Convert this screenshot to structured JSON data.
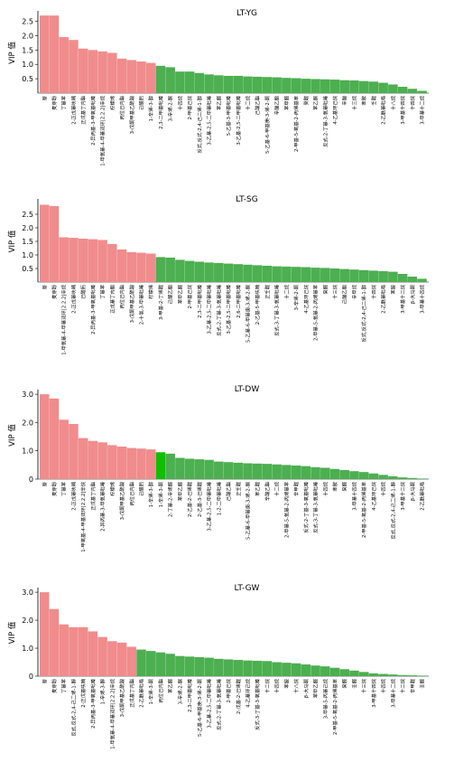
{
  "colors": {
    "vip_high": "#f08c8c",
    "vip_low": "#4caf50",
    "vip_low_highlight": "#0fbf00",
    "axis": "#000000"
  },
  "chart_data": [
    {
      "type": "bar",
      "title": "LT-YG",
      "ylabel": "VIP 值",
      "ylim": [
        0,
        2.8
      ],
      "yticks": [
        "2.5",
        "2.0",
        "1.5",
        "1.0",
        "0.5"
      ],
      "ytick_values": [
        2.5,
        2.0,
        1.5,
        1.0,
        0.5
      ],
      "categories": [
        "萘",
        "麦芽酚",
        "丁基苯",
        "2-正戊基呋喃",
        "正戊基丁内酯",
        "2-异丙基-3-甲氧基吡嗪",
        "1-甲氧基-4-甲基双环[2.2.2]辛烷",
        "柠檬烯",
        "丙位己内酯",
        "3-戊酮甲基乙酰酸",
        "己醛肟",
        "1-辛烯-3-醇",
        "2,3-二甲基吡嗪",
        "3-辛烯-2-酮",
        "十四烷",
        "2-甲基己烷",
        "反式,反式-2,4-己二烯-1-醇",
        "3-乙基-2,5-二甲基吡嗪",
        "苯乙醛",
        "5-乙基-3-甲基吡嗪",
        "3-乙基-2,5-二甲基吡嗪",
        "十二烷",
        "己酸乙酯",
        "5-乙基-6-甲基庚-3-烯-2-酮",
        "辛酸乙酯",
        "苯甲醛",
        "2-甲基-5-氧基-2-丙烯基苯",
        "癸醛",
        "苯乙酮",
        "反式-2-丁基-3-氧基吡嗪",
        "4-乙基环己烷",
        "辛酸",
        "十三烷",
        "苯胺",
        "壬醛",
        "2-乙酰基吡咯",
        "十八烷",
        "3-甲基十四烷",
        "十四烷",
        "3-甲基十二烷"
      ],
      "values": [
        2.7,
        2.7,
        1.95,
        1.85,
        1.55,
        1.5,
        1.45,
        1.4,
        1.2,
        1.15,
        1.1,
        1.05,
        0.95,
        0.9,
        0.75,
        0.75,
        0.7,
        0.65,
        0.62,
        0.6,
        0.6,
        0.58,
        0.57,
        0.56,
        0.55,
        0.53,
        0.52,
        0.5,
        0.49,
        0.48,
        0.47,
        0.45,
        0.44,
        0.42,
        0.4,
        0.36,
        0.3,
        0.22,
        0.15,
        0.08
      ],
      "highlight_index": -1
    },
    {
      "type": "bar",
      "title": "LT-SG",
      "ylabel": "VIP 值",
      "ylim": [
        0,
        3.0
      ],
      "yticks": [
        "2.5",
        "2.0",
        "1.5",
        "1.0",
        "0.5"
      ],
      "ytick_values": [
        2.5,
        2.0,
        1.5,
        1.0,
        0.5
      ],
      "categories": [
        "萘",
        "麦芽酚",
        "1-甲氧基-4-甲基双环[2.2.2]辛烷",
        "2-正戊基呋喃",
        "己醛肟",
        "2-异丙基-3-甲氧基吡嗪",
        "丁基苯",
        "正戊基丁内酯",
        "丙位己内酯",
        "3-戊酮甲基乙酰酸",
        "2-十氢-3-甲基吡嗪",
        "柠檬烯",
        "3-甲基-2-丁烯醛",
        "己醛乙酯",
        "苯甲乙醛",
        "2-甲基己烷",
        "2,3-二甲基吡嗪",
        "3-乙基-2,5-二甲基吡嗪",
        "反式-2-丁基-3-氧基吡嗪",
        "3-乙基-2,5-二甲基吡嗪",
        "2,6-二甲基吡嗪",
        "5-乙基-6-甲基庚-3-烯-2-酮",
        "2-乙基-5-甲基呋喃",
        "正壬醛",
        "反式-3-丁基-3-氧基吡嗪",
        "十二烷",
        "3-辛烯-2-酮",
        "4-乙基环己烷",
        "2-甲基-5-氧基-2-丙烯基苯",
        "癸醛",
        "十三烷",
        "己酸乙酯",
        "辛甲烷",
        "反式,反式-2,4-己二烯-1-醇",
        "十四烷",
        "2-乙酰基吡咯",
        "苯胺",
        "3-甲基十二烷",
        "β-大马酮",
        "3-甲基十四烷"
      ],
      "values": [
        2.85,
        2.8,
        1.65,
        1.63,
        1.6,
        1.58,
        1.55,
        1.4,
        1.2,
        1.1,
        1.08,
        1.05,
        0.92,
        0.9,
        0.82,
        0.78,
        0.75,
        0.72,
        0.7,
        0.68,
        0.66,
        0.64,
        0.62,
        0.6,
        0.58,
        0.57,
        0.56,
        0.55,
        0.53,
        0.52,
        0.5,
        0.48,
        0.46,
        0.44,
        0.42,
        0.4,
        0.38,
        0.3,
        0.2,
        0.12
      ],
      "highlight_index": -1
    },
    {
      "type": "bar",
      "title": "LT-DW",
      "ylabel": "VIP 值",
      "ylim": [
        0,
        3.1
      ],
      "yticks": [
        "3.0",
        "2.0",
        "1.0",
        "0"
      ],
      "ytick_values": [
        3.0,
        2.0,
        1.0,
        0
      ],
      "categories": [
        "萘",
        "麦芽酚",
        "丁基苯",
        "2-正戊基呋喃",
        "1-甲氧基-4-甲基双环[2.2.2]辛烷",
        "正戊基丁内酯",
        "2-异丙基-3-甲氧基吡嗪",
        "柠檬烯",
        "3-戊酮甲基乙酰酸",
        "丙位己内酯",
        "己醛肟",
        "1-辛烯-3-醇",
        "1-辛烯-3-酮",
        "2-丁基-2-辛烯醛",
        "苯甲乙醛",
        "2-乙基-2-己烯醛",
        "2-乙基-3-己烯醛",
        "3-乙基-2,5-二甲基吡嗪",
        "1-2-二甲基吡嗪",
        "己酸乙酯",
        "正壬醛",
        "5-乙基-6-甲基庚-3-烯-2-酮",
        "苯乙醛",
        "辛酸乙酯",
        "十二烷",
        "2-甲基-5-氧基-2-丙烯基苯",
        "辛甲醛",
        "反式-2-丁基-3-氧基吡嗪",
        "反式-3-丁基-3-氧基吡嗪",
        "十四烷",
        "苯胺",
        "癸醛",
        "3-甲基十四烷",
        "2-甲基-5-氧基-2-丙烯基苯",
        "4-乙基环己烷",
        "十四烷",
        "反式,反式-2,4-己二烯-1-醇",
        "3-甲基十二烷",
        "β-大马酮",
        "2-乙酰基吡咯"
      ],
      "values": [
        3.0,
        2.85,
        2.1,
        1.95,
        1.45,
        1.35,
        1.3,
        1.2,
        1.15,
        1.1,
        1.08,
        1.05,
        0.95,
        0.9,
        0.75,
        0.72,
        0.7,
        0.68,
        0.62,
        0.6,
        0.58,
        0.56,
        0.55,
        0.54,
        0.52,
        0.5,
        0.48,
        0.46,
        0.42,
        0.4,
        0.36,
        0.32,
        0.28,
        0.25,
        0.2,
        0.15,
        0.1,
        0.06,
        0.04,
        0.02
      ],
      "highlight_index": 12
    },
    {
      "type": "bar",
      "title": "LT-GW",
      "ylabel": "VIP 值",
      "ylim": [
        0,
        3.1
      ],
      "yticks": [
        "3.0",
        "2.0",
        "1.0",
        "0"
      ],
      "ytick_values": [
        3.0,
        2.0,
        1.0,
        0
      ],
      "categories": [
        "萘",
        "麦芽酚",
        "丁基苯",
        "反式,反式-2,4-己二烯-1-醇",
        "2-正戊基呋喃",
        "2-异丙基-3-甲氧基吡嗪",
        "1-辛烯-3-醇",
        "1-甲氧基-4-甲基双环[2.2.2]辛烷",
        "3-戊酮甲基乙酰酸",
        "正戊基丁内酯",
        "2-乙酰基吡咯",
        "1-辛烯-3-酮",
        "丙位己内酯",
        "苯乙醛",
        "3-辛烯-2-酮",
        "2,3-二甲基吡嗪",
        "5-乙基-6-甲基庚-3-烯-2-酮",
        "3-乙基-2,5-二甲基吡嗪",
        "反式-2-丁基-3-氧基吡嗪",
        "2-甲基己烷",
        "2-戊基-2-己烯醛",
        "4-乙基环己烷",
        "反式-3-丁基-3-氧基吡嗪",
        "十二烷",
        "十四烷",
        "苯胺",
        "十八烷",
        "β-大马酮",
        "苯甲乙醛",
        "3-甲基-5-丙基己烷",
        "2-甲基-5-氧基-2-丙烯基苯",
        "癸醛",
        "壬醛",
        "十三烷",
        "3-甲基十四烷",
        "十四烷",
        "3-甲基十二烷",
        "十二烷",
        "辛甲醛",
        "壬醛"
      ],
      "values": [
        3.0,
        2.4,
        1.85,
        1.75,
        1.75,
        1.6,
        1.4,
        1.25,
        1.2,
        1.05,
        0.95,
        0.9,
        0.85,
        0.8,
        0.72,
        0.7,
        0.68,
        0.66,
        0.62,
        0.6,
        0.58,
        0.56,
        0.55,
        0.54,
        0.5,
        0.48,
        0.46,
        0.42,
        0.38,
        0.35,
        0.3,
        0.25,
        0.2,
        0.15,
        0.1,
        0.08,
        0.06,
        0.04,
        0.03,
        0.02
      ],
      "highlight_index": -1
    }
  ]
}
